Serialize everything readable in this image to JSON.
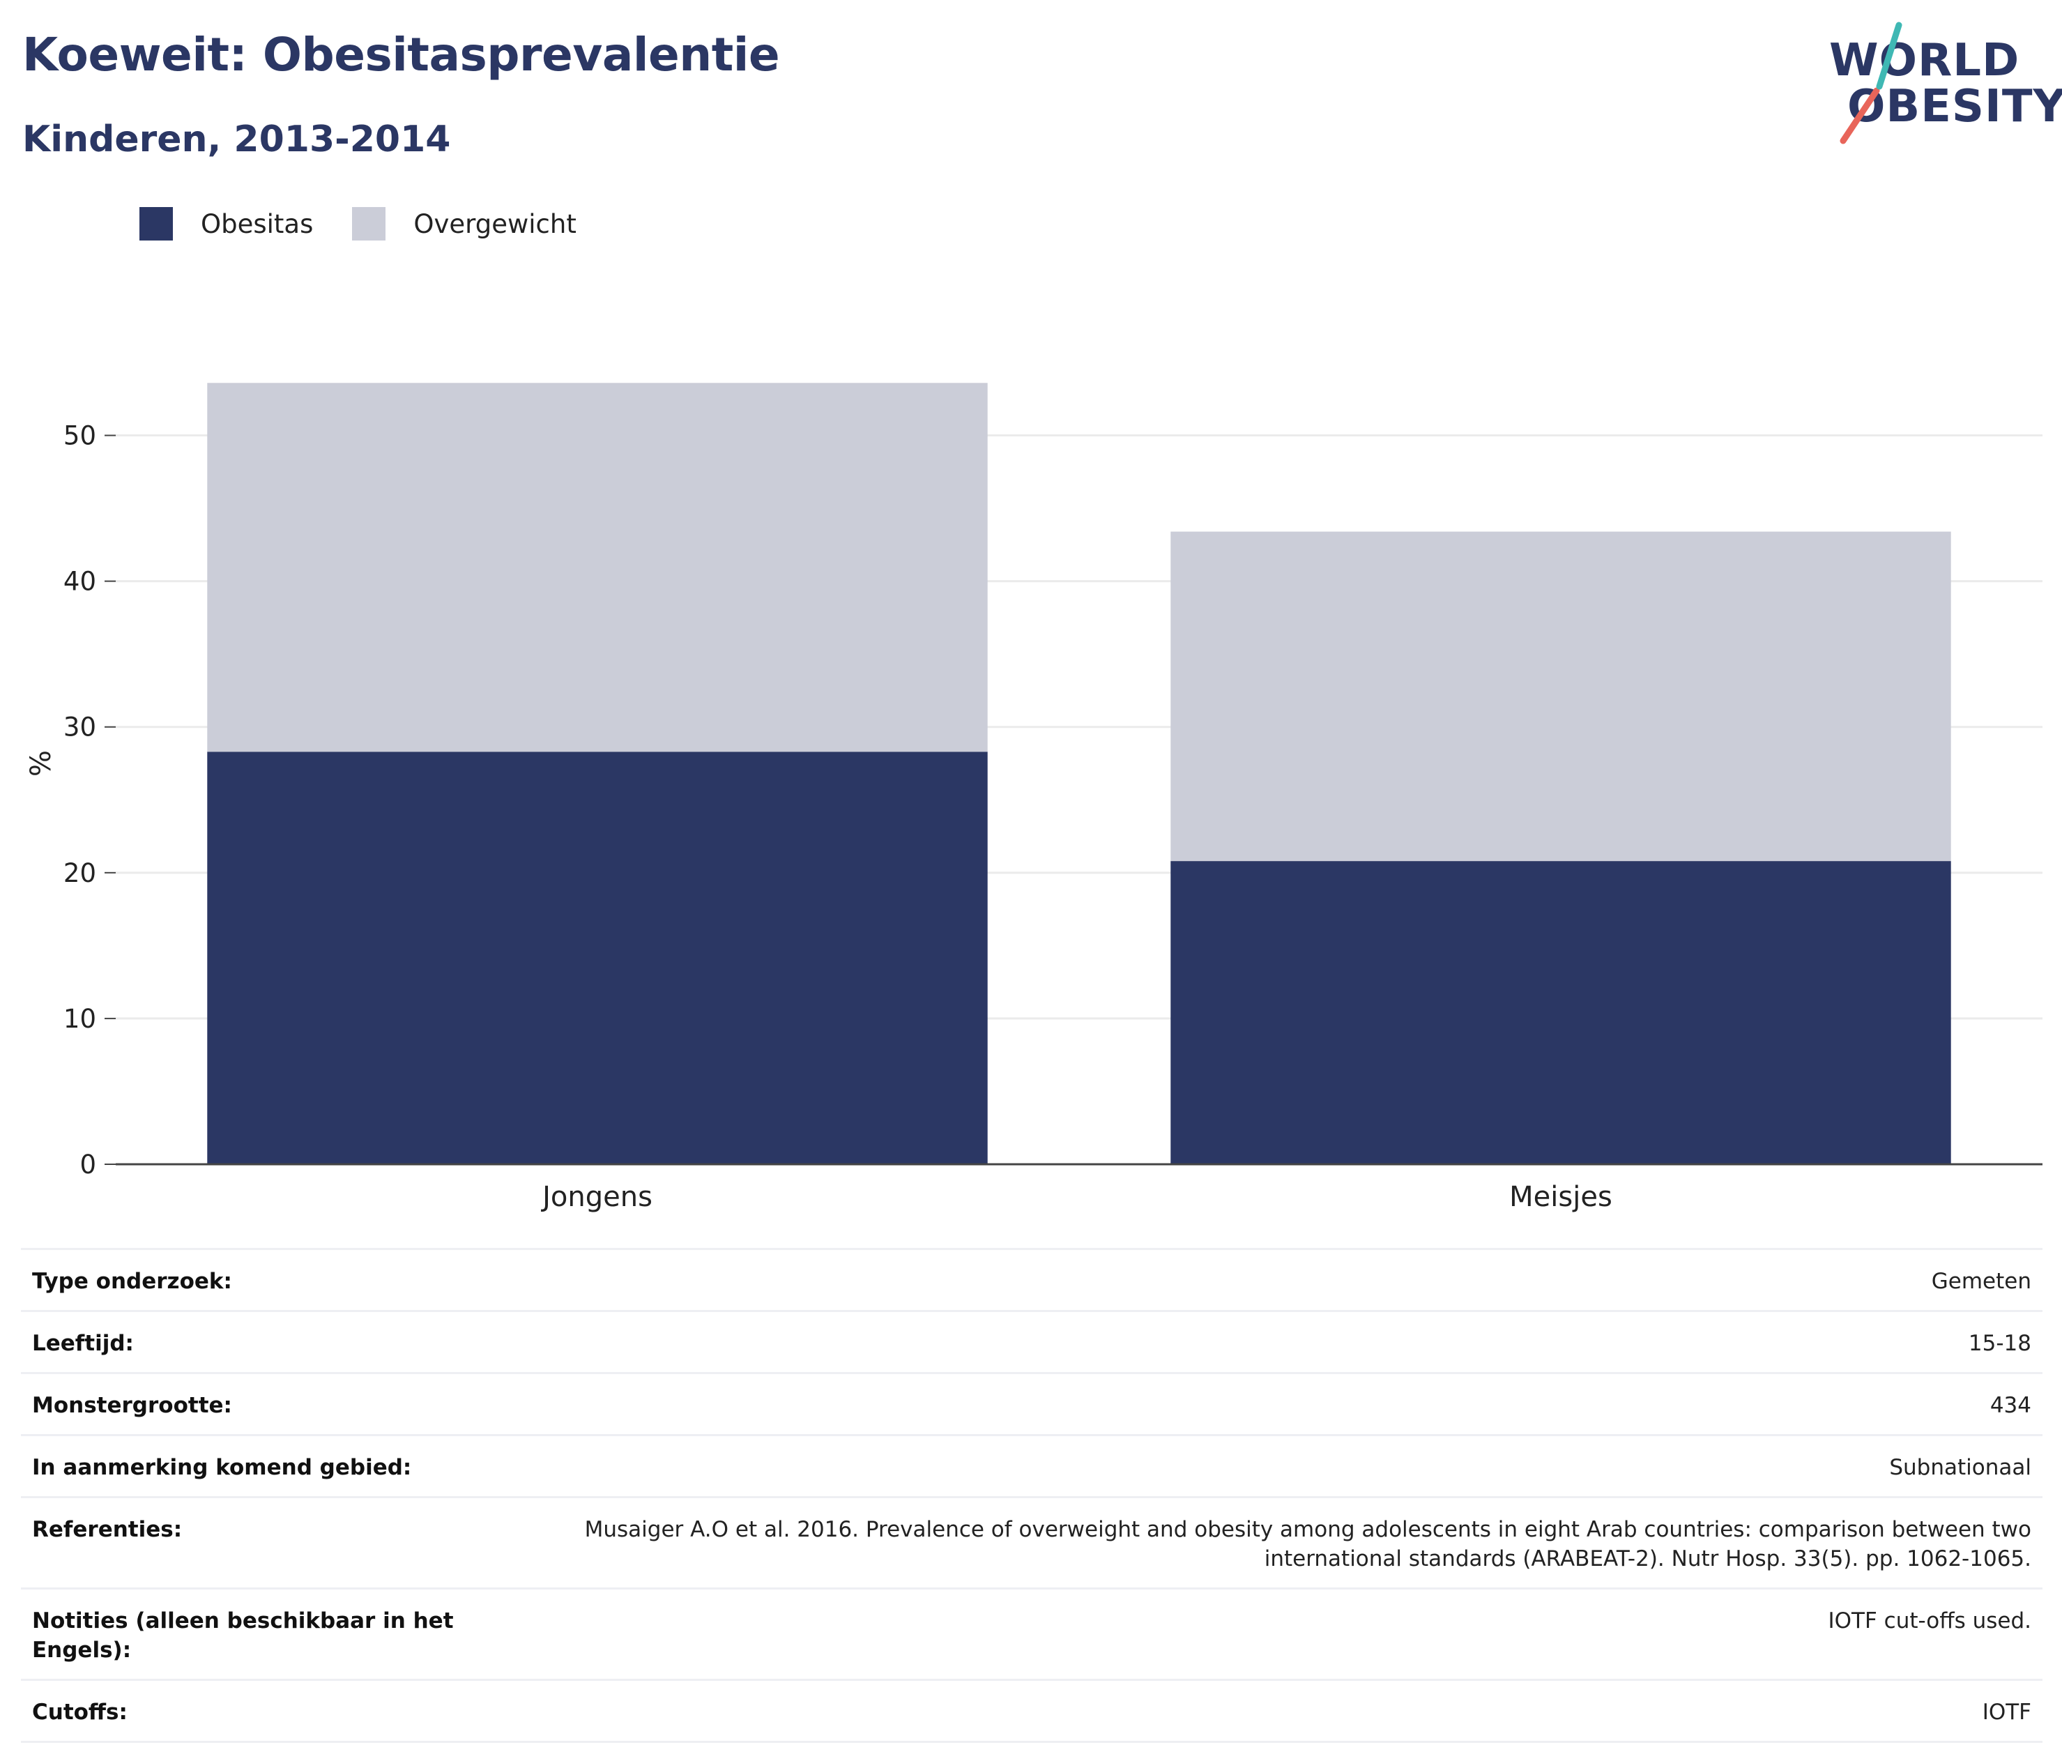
{
  "header": {
    "title": "Koeweit: Obesitasprevalentie",
    "subtitle": "Kinderen, 2013-2014"
  },
  "logo": {
    "line1": "WORLD",
    "line2": "OBESITY"
  },
  "colors": {
    "obesitas": "#2b3764",
    "overgewicht": "#cbcdd8",
    "title": "#2b3764"
  },
  "chart_data": {
    "type": "bar",
    "stacked": true,
    "categories": [
      "Jongens",
      "Meisjes"
    ],
    "series": [
      {
        "name": "Obesitas",
        "values": [
          28.3,
          20.8
        ]
      },
      {
        "name": "Overgewicht",
        "values": [
          25.3,
          22.6
        ]
      }
    ],
    "ylabel": "%",
    "ylim": [
      0,
      55
    ],
    "yticks": [
      0,
      10,
      20,
      30,
      40,
      50
    ],
    "grid": true,
    "legend": "top-left"
  },
  "info_table": [
    {
      "label": "Type onderzoek:",
      "value": "Gemeten"
    },
    {
      "label": "Leeftijd:",
      "value": "15-18"
    },
    {
      "label": "Monstergrootte:",
      "value": "434"
    },
    {
      "label": "In aanmerking komend gebied:",
      "value": "Subnationaal"
    },
    {
      "label": "Referenties:",
      "value": "Musaiger A.O et al. 2016. Prevalence of overweight and obesity among adolescents in eight Arab countries: comparison between two international standards (ARABEAT-2). Nutr Hosp. 33(5). pp. 1062-1065."
    },
    {
      "label": "Notities (alleen beschikbaar in het Engels):",
      "value": "IOTF cut-offs used."
    },
    {
      "label": "Cutoffs:",
      "value": "IOTF"
    }
  ]
}
